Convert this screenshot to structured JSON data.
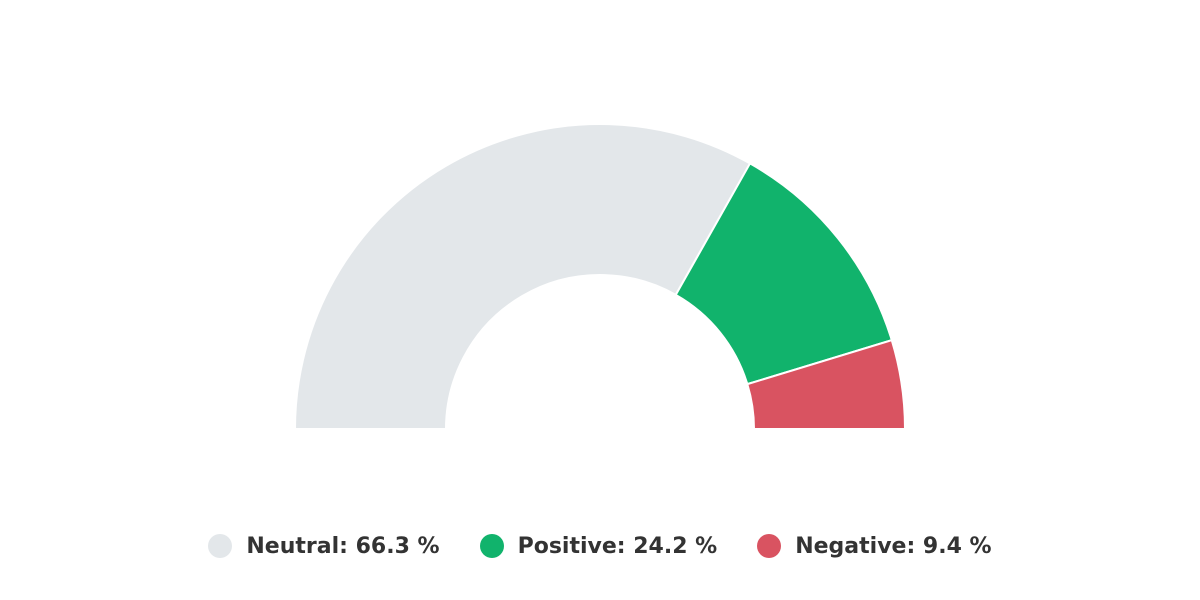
{
  "chart_data": {
    "type": "pie",
    "variant": "semi-donut",
    "title": "",
    "unit": "%",
    "series": [
      {
        "name": "Neutral",
        "value": 66.3,
        "color": "#e3e7ea"
      },
      {
        "name": "Positive",
        "value": 24.2,
        "color": "#11b36c"
      },
      {
        "name": "Negative",
        "value": 9.4,
        "color": "#d95361"
      }
    ],
    "legend": {
      "position": "bottom-center",
      "items": [
        {
          "label": "Neutral: 66.3 %",
          "color": "#e3e7ea"
        },
        {
          "label": "Positive: 24.2 %",
          "color": "#11b36c"
        },
        {
          "label": "Negative: 9.4 %",
          "color": "#d95361"
        }
      ]
    }
  }
}
